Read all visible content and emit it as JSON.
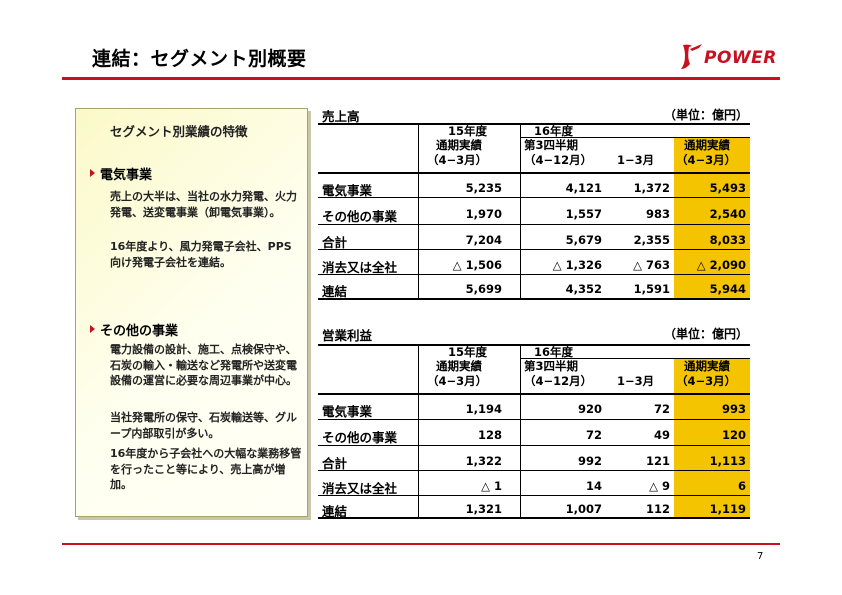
{
  "title": "連結：セグメント別概要",
  "logo": {
    "word": "POWER"
  },
  "page_number": "7",
  "panel": {
    "title": "セグメント別業績の特徴",
    "sections": [
      {
        "heading": "電気事業",
        "paragraphs": [
          "売上の大半は、当社の水力発電、火力発電、送変電事業（卸電気事業）。",
          "16年度より、風力発電子会社、PPS向け発電子会社を連結。"
        ]
      },
      {
        "heading": "その他の事業",
        "paragraphs": [
          "電力設備の設計、施工、点検保守や、石炭の輸入・輸送など発電所や送変電設備の運営に必要な周辺事業が中心。",
          "当社発電所の保守、石炭輸送等、グループ内部取引が多い。",
          "16年度から子会社への大幅な業務移管を行ったこと等により、売上高が増加。"
        ]
      }
    ]
  },
  "header_labels": {
    "fy15": "15年度",
    "fy16": "16年度",
    "fy15_sub1": "通期実績",
    "fy15_sub2": "（4−3月）",
    "q3_sub1": "第3四半期",
    "q3_sub2": "（4−12月）",
    "q4_sub": "1−3月",
    "full_sub1": "通期実績",
    "full_sub2": "（4−3月）"
  },
  "tables": [
    {
      "title": "売上高",
      "unit": "（単位：億円）",
      "rows": [
        {
          "label": "電気事業",
          "fy15": "5,235",
          "q3": "4,121",
          "q4": "1,372",
          "full": "5,493"
        },
        {
          "label": "その他の事業",
          "fy15": "1,970",
          "q3": "1,557",
          "q4": "983",
          "full": "2,540"
        },
        {
          "label": "合計",
          "fy15": "7,204",
          "q3": "5,679",
          "q4": "2,355",
          "full": "8,033"
        },
        {
          "label": "消去又は全社",
          "fy15": "△ 1,506",
          "q3": "△ 1,326",
          "q4": "△ 763",
          "full": "△ 2,090"
        },
        {
          "label": "連結",
          "fy15": "5,699",
          "q3": "4,352",
          "q4": "1,591",
          "full": "5,944"
        }
      ]
    },
    {
      "title": "営業利益",
      "unit": "（単位：億円）",
      "rows": [
        {
          "label": "電気事業",
          "fy15": "1,194",
          "q3": "920",
          "q4": "72",
          "full": "993"
        },
        {
          "label": "その他の事業",
          "fy15": "128",
          "q3": "72",
          "q4": "49",
          "full": "120"
        },
        {
          "label": "合計",
          "fy15": "1,322",
          "q3": "992",
          "q4": "121",
          "full": "1,113"
        },
        {
          "label": "消去又は全社",
          "fy15": "△ 1",
          "q3": "14",
          "q4": "△ 9",
          "full": "6"
        },
        {
          "label": "連結",
          "fy15": "1,321",
          "q3": "1,007",
          "q4": "112",
          "full": "1,119"
        }
      ]
    }
  ],
  "colors": {
    "accent": "#c8101f",
    "highlight": "#f5c400"
  }
}
